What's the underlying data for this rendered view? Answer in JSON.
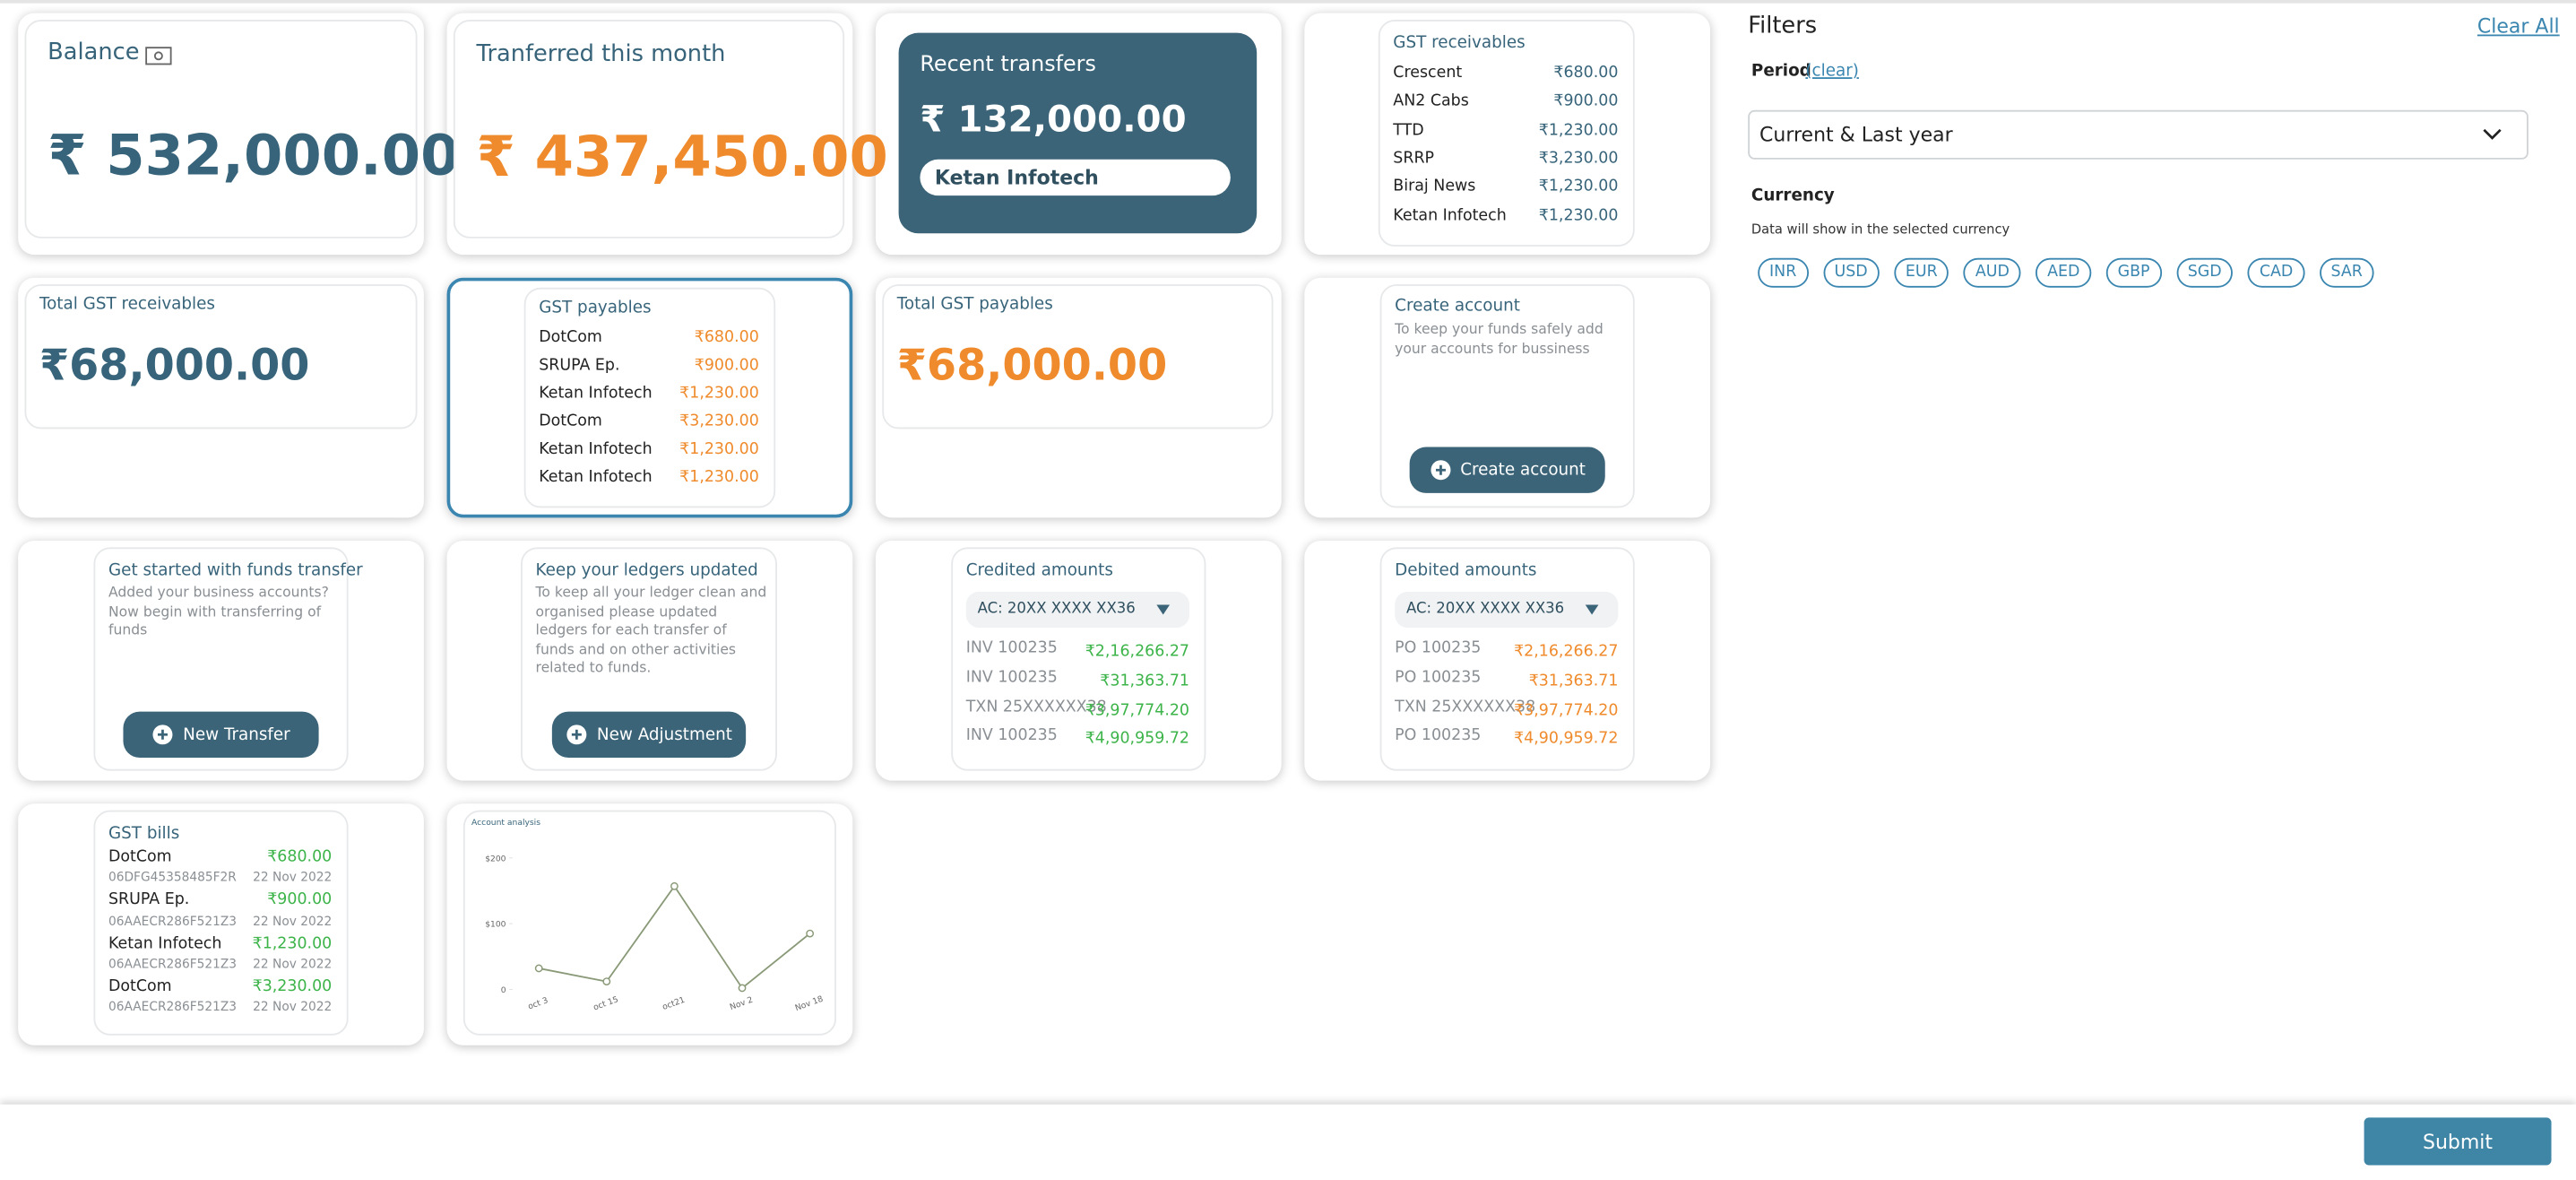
{
  "balance": {
    "title": "Balance",
    "amount": "₹ 532,000.00"
  },
  "transferred": {
    "title": "Tranferred this month",
    "amount": "₹ 437,450.00"
  },
  "recent": {
    "title": "Recent transfers",
    "amount": "₹ 132,000.00",
    "name": "Ketan Infotech"
  },
  "gst_receivables": {
    "title": "GST receivables",
    "rows": [
      [
        "Crescent",
        "₹680.00"
      ],
      [
        "AN2 Cabs",
        "₹900.00"
      ],
      [
        "TTD",
        "₹1,230.00"
      ],
      [
        "SRRP",
        "₹3,230.00"
      ],
      [
        "Biraj News",
        "₹1,230.00"
      ],
      [
        "Ketan Infotech",
        "₹1,230.00"
      ]
    ]
  },
  "total_gst_receivables": {
    "title": "Total GST receivables",
    "amount": "₹68,000.00"
  },
  "gst_payables": {
    "title": "GST payables",
    "rows": [
      [
        "DotCom",
        "₹680.00"
      ],
      [
        "SRUPA Ep.",
        "₹900.00"
      ],
      [
        "Ketan Infotech",
        "₹1,230.00"
      ],
      [
        "DotCom",
        "₹3,230.00"
      ],
      [
        "Ketan Infotech",
        "₹1,230.00"
      ],
      [
        "Ketan Infotech",
        "₹1,230.00"
      ]
    ]
  },
  "total_gst_payables": {
    "title": "Total GST payables",
    "amount": "₹68,000.00"
  },
  "create_account": {
    "title": "Create account",
    "text": "To keep your funds safely add your accounts for bussiness",
    "button": "Create  account"
  },
  "funds_transfer": {
    "title": "Get started with funds transfer",
    "text": "Added your business accounts? Now begin with transferring of funds",
    "button": "New Transfer"
  },
  "ledgers": {
    "title": "Keep your ledgers updated",
    "text": "To keep all your ledger clean and organised please updated ledgers for each transfer of funds and on other activities related to funds.",
    "button": "New Adjustment"
  },
  "credited": {
    "title": "Credited amounts",
    "account": "AC: 20XX XXXX XX36",
    "rows": [
      [
        "INV 100235",
        "₹2,16,266.27"
      ],
      [
        "INV 100235",
        "₹31,363.71"
      ],
      [
        "TXN 25XXXXXX38",
        "₹3,97,774.20"
      ],
      [
        "INV 100235",
        "₹4,90,959.72"
      ]
    ]
  },
  "debited": {
    "title": "Debited amounts",
    "account": "AC: 20XX XXXX XX36",
    "rows": [
      [
        "PO 100235",
        "₹2,16,266.27"
      ],
      [
        "PO 100235",
        "₹31,363.71"
      ],
      [
        "TXN 25XXXXXX38",
        "₹3,97,774.20"
      ],
      [
        "PO 100235",
        "₹4,90,959.72"
      ]
    ]
  },
  "gst_bills": {
    "title": "GST bills",
    "rows": [
      [
        "DotCom",
        "₹680.00",
        "06DFG45358485F2R",
        "22 Nov 2022"
      ],
      [
        "SRUPA Ep.",
        "₹900.00",
        "06AAECR286F521Z3",
        "22 Nov 2022"
      ],
      [
        "Ketan Infotech",
        "₹1,230.00",
        "06AAECR286F521Z3",
        "22 Nov 2022"
      ],
      [
        "DotCom",
        "₹3,230.00",
        "06AAECR286F521Z3",
        "22 Nov 2022"
      ]
    ]
  },
  "account_analysis": {
    "type": "line",
    "title": "Account analysis",
    "categories": [
      "oct 3",
      "oct 15",
      "oct21",
      "Nov 2",
      "Nov 18"
    ],
    "values": [
      32,
      12,
      157,
      2,
      85
    ],
    "color": "#8a9a78",
    "ylim": [
      0,
      200
    ],
    "yticks": [
      0,
      {
        "value": 100,
        "label": "$100"
      },
      {
        "value": 200,
        "label": "$200"
      }
    ]
  },
  "filters": {
    "title": "Filters",
    "clear_all": "Clear All",
    "period_label": "Period",
    "period_clear": "(clear)",
    "period_value": "Current & Last year",
    "currency_label": "Currency",
    "currency_note": "Data will show in the selected currency",
    "currencies": [
      "INR",
      "USD",
      "EUR",
      "AUD",
      "AED",
      "GBP",
      "SGD",
      "CAD",
      "SAR"
    ]
  },
  "submit": "Submit"
}
